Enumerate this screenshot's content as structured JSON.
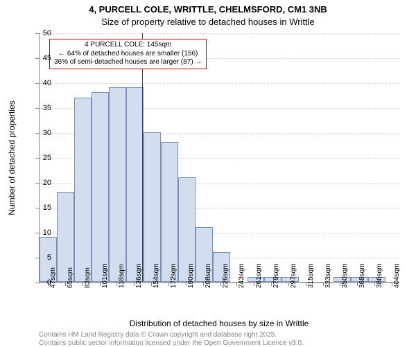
{
  "title_line1": "4, PURCELL COLE, WRITTLE, CHELMSFORD, CM1 3NB",
  "title_line2": "Size of property relative to detached houses in Writtle",
  "y_axis_title": "Number of detached properties",
  "x_axis_title": "Distribution of detached houses by size in Writtle",
  "chart": {
    "type": "histogram",
    "ylim": [
      0,
      50
    ],
    "ytick_step": 5,
    "yticks": [
      0,
      5,
      10,
      15,
      20,
      25,
      30,
      35,
      40,
      45,
      50
    ],
    "xlim": [
      38,
      413
    ],
    "xticks": [
      47,
      65,
      83,
      101,
      118,
      136,
      154,
      172,
      190,
      208,
      226,
      243,
      261,
      279,
      297,
      315,
      333,
      350,
      368,
      386,
      404
    ],
    "x_unit": "sqm",
    "bar_color": "#d3ddf0",
    "bar_border_color": "#7a8fb8",
    "background_color": "#ffffff",
    "grid_color": "#cccccc",
    "axis_color": "#888888",
    "bin_width": 18,
    "bins": [
      {
        "start": 38,
        "value": 9
      },
      {
        "start": 56,
        "value": 18
      },
      {
        "start": 74,
        "value": 37
      },
      {
        "start": 92,
        "value": 38
      },
      {
        "start": 110,
        "value": 39
      },
      {
        "start": 128,
        "value": 39
      },
      {
        "start": 146,
        "value": 30
      },
      {
        "start": 164,
        "value": 28
      },
      {
        "start": 182,
        "value": 21
      },
      {
        "start": 200,
        "value": 11
      },
      {
        "start": 218,
        "value": 6
      },
      {
        "start": 236,
        "value": 0
      },
      {
        "start": 254,
        "value": 1
      },
      {
        "start": 272,
        "value": 1
      },
      {
        "start": 290,
        "value": 1
      },
      {
        "start": 308,
        "value": 0
      },
      {
        "start": 326,
        "value": 0
      },
      {
        "start": 344,
        "value": 1
      },
      {
        "start": 362,
        "value": 1
      },
      {
        "start": 380,
        "value": 1
      },
      {
        "start": 398,
        "value": 0
      }
    ],
    "marker": {
      "x_value": 145,
      "color": "#d00000"
    },
    "annotation": {
      "line1": "4 PURCELL COLE: 145sqm",
      "line2": "← 64% of detached houses are smaller (156)",
      "line3": "36% of semi-detached houses are larger (87) →",
      "border_color": "#d00000",
      "background_color": "#ffffff",
      "fontsize": 10
    }
  },
  "footer_line1": "Contains HM Land Registry data © Crown copyright and database right 2025.",
  "footer_line2": "Contains public sector information licensed under the Open Government Licence v3.0.",
  "typography": {
    "title_fontsize": 13,
    "axis_label_fontsize": 11,
    "axis_title_fontsize": 12,
    "footer_fontsize": 10,
    "footer_color": "#888888"
  }
}
